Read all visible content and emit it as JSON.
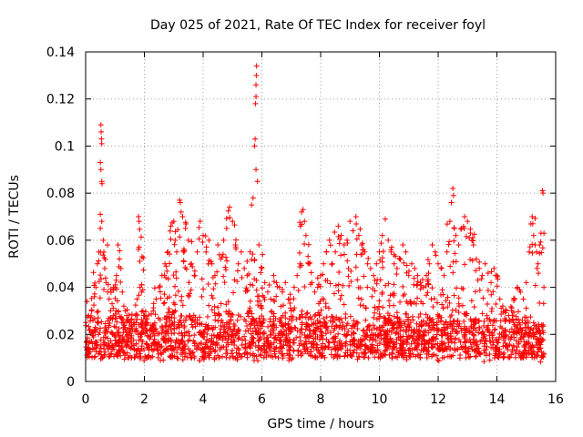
{
  "chart_data": {
    "type": "scatter",
    "title": "Day 025 of 2021, Rate Of TEC Index for receiver foyl",
    "xlabel": "GPS time / hours",
    "ylabel": "ROTI / TECUs",
    "xlim": [
      0,
      16
    ],
    "ylim": [
      0,
      0.14
    ],
    "x_ticks": [
      0,
      2,
      4,
      6,
      8,
      10,
      12,
      14,
      16
    ],
    "y_ticks": [
      0,
      0.02,
      0.04,
      0.06,
      0.08,
      0.1,
      0.12,
      0.14
    ],
    "x_tick_labels": [
      "0",
      "2",
      "4",
      "6",
      "8",
      "10",
      "12",
      "14",
      "16"
    ],
    "y_tick_labels": [
      "0",
      "0.02",
      "0.04",
      "0.06",
      "0.08",
      "0.1",
      "0.12",
      "0.14"
    ],
    "grid": true,
    "marker": "+",
    "color": "#ff0000",
    "series": [
      {
        "name": "ROTI",
        "points": [
          [
            0.05,
            0.034
          ],
          [
            0.1,
            0.028
          ],
          [
            0.15,
            0.022
          ],
          [
            0.2,
            0.03
          ],
          [
            0.25,
            0.026
          ],
          [
            0.3,
            0.036
          ],
          [
            0.35,
            0.04
          ],
          [
            0.4,
            0.05
          ],
          [
            0.45,
            0.055
          ],
          [
            0.5,
            0.065
          ],
          [
            0.52,
            0.109
          ],
          [
            0.53,
            0.106
          ],
          [
            0.54,
            0.103
          ],
          [
            0.55,
            0.101
          ],
          [
            0.5,
            0.093
          ],
          [
            0.52,
            0.09
          ],
          [
            0.55,
            0.085
          ],
          [
            0.56,
            0.084
          ],
          [
            0.5,
            0.071
          ],
          [
            0.55,
            0.068
          ],
          [
            0.6,
            0.06
          ],
          [
            0.65,
            0.048
          ],
          [
            0.7,
            0.042
          ],
          [
            0.75,
            0.038
          ],
          [
            0.8,
            0.035
          ],
          [
            0.85,
            0.03
          ],
          [
            0.9,
            0.033
          ],
          [
            0.95,
            0.028
          ],
          [
            1.0,
            0.04
          ],
          [
            1.05,
            0.045
          ],
          [
            1.1,
            0.058
          ],
          [
            1.15,
            0.052
          ],
          [
            1.2,
            0.048
          ],
          [
            1.25,
            0.038
          ],
          [
            1.3,
            0.032
          ],
          [
            1.35,
            0.03
          ],
          [
            1.4,
            0.028
          ],
          [
            1.45,
            0.026
          ],
          [
            1.5,
            0.025
          ],
          [
            1.55,
            0.024
          ],
          [
            1.6,
            0.022
          ],
          [
            1.65,
            0.025
          ],
          [
            1.7,
            0.028
          ],
          [
            1.75,
            0.035
          ],
          [
            1.8,
            0.07
          ],
          [
            1.82,
            0.068
          ],
          [
            1.85,
            0.04
          ],
          [
            1.9,
            0.038
          ],
          [
            1.95,
            0.03
          ],
          [
            2.0,
            0.028
          ],
          [
            2.1,
            0.025
          ],
          [
            2.2,
            0.022
          ],
          [
            2.3,
            0.03
          ],
          [
            2.4,
            0.035
          ],
          [
            2.5,
            0.04
          ],
          [
            2.6,
            0.045
          ],
          [
            2.7,
            0.05
          ],
          [
            2.8,
            0.055
          ],
          [
            2.9,
            0.066
          ],
          [
            3.0,
            0.068
          ],
          [
            3.05,
            0.06
          ],
          [
            3.1,
            0.055
          ],
          [
            3.2,
            0.077
          ],
          [
            3.22,
            0.076
          ],
          [
            3.25,
            0.072
          ],
          [
            3.3,
            0.07
          ],
          [
            3.4,
            0.065
          ],
          [
            3.5,
            0.06
          ],
          [
            3.6,
            0.05
          ],
          [
            3.7,
            0.045
          ],
          [
            3.8,
            0.055
          ],
          [
            3.9,
            0.068
          ],
          [
            4.0,
            0.062
          ],
          [
            4.1,
            0.055
          ],
          [
            4.2,
            0.06
          ],
          [
            4.3,
            0.05
          ],
          [
            4.4,
            0.045
          ],
          [
            4.5,
            0.058
          ],
          [
            4.6,
            0.052
          ],
          [
            4.7,
            0.06
          ],
          [
            4.8,
            0.065
          ],
          [
            4.9,
            0.074
          ],
          [
            5.0,
            0.068
          ],
          [
            5.1,
            0.058
          ],
          [
            5.2,
            0.05
          ],
          [
            5.3,
            0.055
          ],
          [
            5.4,
            0.048
          ],
          [
            5.5,
            0.045
          ],
          [
            5.6,
            0.055
          ],
          [
            5.65,
            0.075
          ],
          [
            5.7,
            0.078
          ],
          [
            5.75,
            0.1
          ],
          [
            5.77,
            0.103
          ],
          [
            5.78,
            0.118
          ],
          [
            5.8,
            0.121
          ],
          [
            5.8,
            0.126
          ],
          [
            5.81,
            0.13
          ],
          [
            5.82,
            0.134
          ],
          [
            5.8,
            0.09
          ],
          [
            5.85,
            0.085
          ],
          [
            5.9,
            0.058
          ],
          [
            6.0,
            0.048
          ],
          [
            6.1,
            0.042
          ],
          [
            6.2,
            0.038
          ],
          [
            6.3,
            0.035
          ],
          [
            6.4,
            0.045
          ],
          [
            6.5,
            0.042
          ],
          [
            6.6,
            0.04
          ],
          [
            6.7,
            0.038
          ],
          [
            6.8,
            0.042
          ],
          [
            6.9,
            0.035
          ],
          [
            7.0,
            0.03
          ],
          [
            7.1,
            0.04
          ],
          [
            7.2,
            0.045
          ],
          [
            7.3,
            0.05
          ],
          [
            7.35,
            0.072
          ],
          [
            7.4,
            0.073
          ],
          [
            7.45,
            0.068
          ],
          [
            7.5,
            0.062
          ],
          [
            7.6,
            0.05
          ],
          [
            7.7,
            0.042
          ],
          [
            7.8,
            0.038
          ],
          [
            7.9,
            0.04
          ],
          [
            8.0,
            0.045
          ],
          [
            8.1,
            0.05
          ],
          [
            8.2,
            0.055
          ],
          [
            8.3,
            0.06
          ],
          [
            8.4,
            0.05
          ],
          [
            8.5,
            0.055
          ],
          [
            8.6,
            0.066
          ],
          [
            8.7,
            0.062
          ],
          [
            8.8,
            0.058
          ],
          [
            8.9,
            0.06
          ],
          [
            9.0,
            0.068
          ],
          [
            9.1,
            0.064
          ],
          [
            9.2,
            0.07
          ],
          [
            9.3,
            0.062
          ],
          [
            9.4,
            0.058
          ],
          [
            9.5,
            0.055
          ],
          [
            9.6,
            0.05
          ],
          [
            9.7,
            0.048
          ],
          [
            9.8,
            0.045
          ],
          [
            9.9,
            0.05
          ],
          [
            10.0,
            0.055
          ],
          [
            10.1,
            0.062
          ],
          [
            10.2,
            0.069
          ],
          [
            10.3,
            0.06
          ],
          [
            10.4,
            0.055
          ],
          [
            10.5,
            0.05
          ],
          [
            10.6,
            0.048
          ],
          [
            10.7,
            0.052
          ],
          [
            10.8,
            0.058
          ],
          [
            10.9,
            0.055
          ],
          [
            11.0,
            0.045
          ],
          [
            11.1,
            0.05
          ],
          [
            11.2,
            0.048
          ],
          [
            11.3,
            0.045
          ],
          [
            11.4,
            0.042
          ],
          [
            11.5,
            0.04
          ],
          [
            11.6,
            0.045
          ],
          [
            11.7,
            0.05
          ],
          [
            11.8,
            0.058
          ],
          [
            11.9,
            0.055
          ],
          [
            12.0,
            0.05
          ],
          [
            12.1,
            0.048
          ],
          [
            12.2,
            0.045
          ],
          [
            12.3,
            0.055
          ],
          [
            12.4,
            0.068
          ],
          [
            12.45,
            0.076
          ],
          [
            12.5,
            0.082
          ],
          [
            12.52,
            0.079
          ],
          [
            12.55,
            0.065
          ],
          [
            12.6,
            0.062
          ],
          [
            12.7,
            0.058
          ],
          [
            12.8,
            0.065
          ],
          [
            12.9,
            0.07
          ],
          [
            13.0,
            0.068
          ],
          [
            13.1,
            0.063
          ],
          [
            13.15,
            0.06
          ],
          [
            13.2,
            0.058
          ],
          [
            13.3,
            0.052
          ],
          [
            13.4,
            0.048
          ],
          [
            13.5,
            0.045
          ],
          [
            13.6,
            0.05
          ],
          [
            13.7,
            0.046
          ],
          [
            13.8,
            0.042
          ],
          [
            13.9,
            0.048
          ],
          [
            14.0,
            0.045
          ],
          [
            14.1,
            0.035
          ],
          [
            14.2,
            0.032
          ],
          [
            14.3,
            0.03
          ],
          [
            14.4,
            0.028
          ],
          [
            14.5,
            0.03
          ],
          [
            14.6,
            0.035
          ],
          [
            14.7,
            0.04
          ],
          [
            14.8,
            0.038
          ],
          [
            14.9,
            0.035
          ],
          [
            15.0,
            0.042
          ],
          [
            15.1,
            0.055
          ],
          [
            15.2,
            0.07
          ],
          [
            15.22,
            0.067
          ],
          [
            15.25,
            0.062
          ],
          [
            15.3,
            0.058
          ],
          [
            15.35,
            0.055
          ],
          [
            15.4,
            0.05
          ],
          [
            15.45,
            0.058
          ],
          [
            15.5,
            0.063
          ],
          [
            15.55,
            0.081
          ],
          [
            15.57,
            0.08
          ],
          [
            15.6,
            0.04
          ]
        ]
      }
    ]
  }
}
